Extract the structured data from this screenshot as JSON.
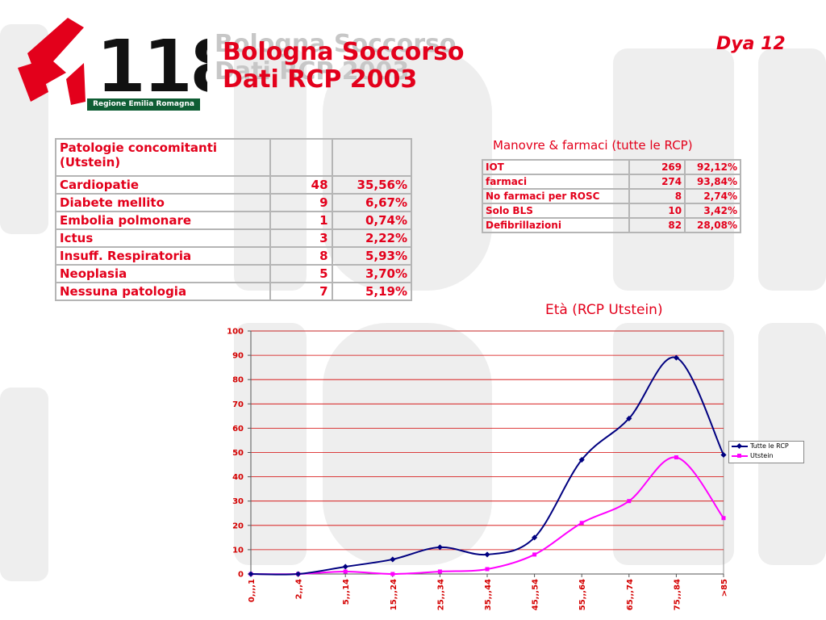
{
  "header": {
    "title_line1": "Bologna Soccorso",
    "title_line2": "Dati RCP 2003",
    "slide_label": "Dya 12",
    "logo_text": "118",
    "logo_caption": "Regione Emilia Romagna"
  },
  "colors": {
    "accent": "#e3001b",
    "series_all": "#000080",
    "series_utstein": "#ff00ff",
    "grid": "#d40000"
  },
  "comorbidity_table": {
    "header": "Patologie concomitanti (Utstein)",
    "rows": [
      {
        "label": "Cardiopatie",
        "count": "48",
        "pct": "35,56%"
      },
      {
        "label": "Diabete mellito",
        "count": "9",
        "pct": "6,67%"
      },
      {
        "label": "Embolia polmonare",
        "count": "1",
        "pct": "0,74%"
      },
      {
        "label": "Ictus",
        "count": "3",
        "pct": "2,22%"
      },
      {
        "label": "Insuff. Respiratoria",
        "count": "8",
        "pct": "5,93%"
      },
      {
        "label": "Neoplasia",
        "count": "5",
        "pct": "3,70%"
      },
      {
        "label": "Nessuna patologia",
        "count": "7",
        "pct": "5,19%"
      }
    ]
  },
  "maneuvers_table": {
    "title": "Manovre & farmaci (tutte le RCP)",
    "rows": [
      {
        "label": "IOT",
        "count": "269",
        "pct": "92,12%"
      },
      {
        "label": "farmaci",
        "count": "274",
        "pct": "93,84%"
      },
      {
        "label": "No farmaci per ROSC",
        "count": "8",
        "pct": "2,74%"
      },
      {
        "label": "Solo BLS",
        "count": "10",
        "pct": "3,42%"
      },
      {
        "label": "Defibrillazioni",
        "count": "82",
        "pct": "28,08%"
      }
    ]
  },
  "chart_data": {
    "type": "line",
    "title": "Età (RCP Utstein)",
    "xlabel": "",
    "ylabel": "",
    "ylim": [
      0,
      100
    ],
    "yticks": [
      0,
      10,
      20,
      30,
      40,
      50,
      60,
      70,
      80,
      90,
      100
    ],
    "grid": true,
    "legend_position": "right",
    "categories": [
      "0,,,,1",
      "2,,,4",
      "5,,,14",
      "15,,,24",
      "25,,,34",
      "35,,,44",
      "45,,,54",
      "55,,,64",
      "65,,,74",
      "75,,,84",
      ">85"
    ],
    "series": [
      {
        "name": "Tutte le RCP",
        "values": [
          0,
          0,
          3,
          6,
          11,
          8,
          15,
          47,
          64,
          89,
          49
        ]
      },
      {
        "name": "Utstein",
        "values": [
          0,
          0,
          1,
          0,
          1,
          2,
          8,
          21,
          30,
          48,
          23
        ]
      }
    ]
  }
}
